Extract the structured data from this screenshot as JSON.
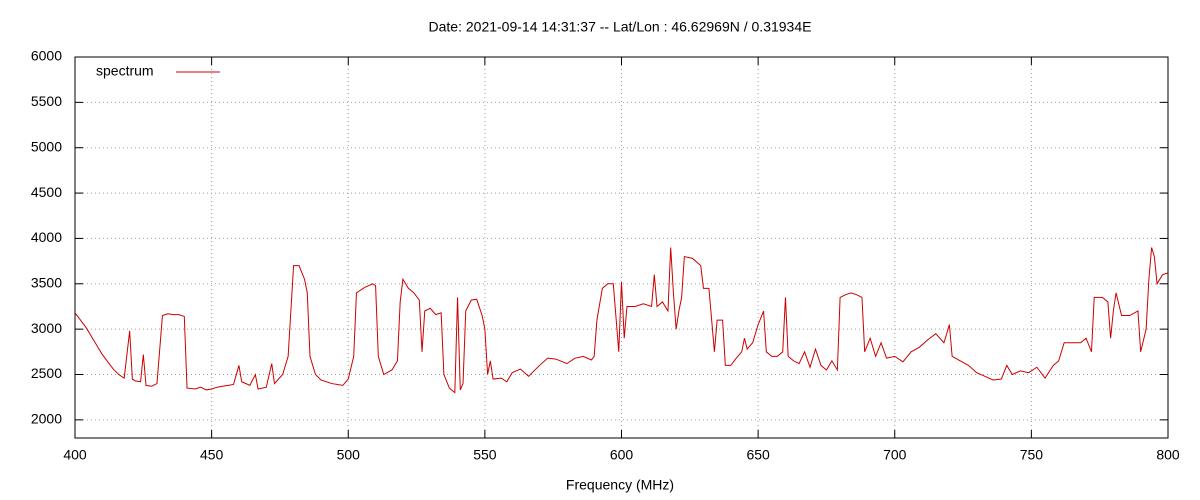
{
  "chart_data": {
    "type": "line",
    "title": "Date: 2021-09-14 14:31:37  --  Lat/Lon : 46.62969N / 0.31934E",
    "x_label": "Frequency (MHz)",
    "x": [
      400,
      402,
      404,
      406,
      408,
      410,
      412,
      414,
      416,
      418,
      420,
      421,
      422,
      424,
      425,
      426,
      428,
      430,
      432,
      434,
      436,
      438,
      440,
      441,
      444,
      446,
      448,
      450,
      452,
      454,
      456,
      458,
      460,
      461,
      464,
      466,
      467,
      470,
      472,
      473,
      476,
      478,
      480,
      482,
      484,
      485,
      486,
      488,
      490,
      494,
      498,
      500,
      502,
      503,
      506,
      509,
      510,
      511,
      513,
      516,
      518,
      519,
      520,
      522,
      524,
      526,
      527,
      528,
      530,
      532,
      534,
      535,
      537,
      539,
      540,
      541,
      542,
      543,
      545,
      547,
      549,
      550,
      551,
      552,
      553,
      556,
      558,
      560,
      563,
      566,
      570,
      573,
      576,
      580,
      583,
      586,
      589,
      590,
      591,
      593,
      595,
      597,
      599,
      600,
      601,
      602,
      605,
      608,
      611,
      612,
      613,
      615,
      617,
      618,
      619,
      620,
      621,
      622,
      623,
      626,
      629,
      630,
      632,
      633,
      634,
      635,
      637,
      638,
      640,
      642,
      644,
      645,
      646,
      648,
      650,
      652,
      653,
      655,
      657,
      659,
      660,
      661,
      663,
      665,
      667,
      669,
      671,
      673,
      675,
      677,
      679,
      680,
      682,
      684,
      686,
      688,
      689,
      691,
      693,
      695,
      697,
      700,
      703,
      706,
      709,
      712,
      715,
      718,
      720,
      721,
      724,
      727,
      730,
      733,
      736,
      739,
      741,
      743,
      746,
      749,
      752,
      755,
      758,
      760,
      762,
      765,
      768,
      770,
      772,
      773,
      776,
      778,
      779,
      780,
      781,
      783,
      786,
      789,
      790,
      792,
      793,
      794,
      795,
      796,
      798,
      800
    ],
    "series": [
      {
        "name": "spectrum",
        "color": "#cc0000",
        "values": [
          3180,
          3100,
          3020,
          2920,
          2820,
          2720,
          2640,
          2560,
          2500,
          2460,
          2980,
          2450,
          2430,
          2420,
          2720,
          2380,
          2370,
          2400,
          3150,
          3170,
          3160,
          3160,
          3140,
          2350,
          2340,
          2360,
          2330,
          2340,
          2360,
          2370,
          2380,
          2390,
          2600,
          2420,
          2380,
          2500,
          2340,
          2360,
          2620,
          2400,
          2500,
          2700,
          3700,
          3700,
          3550,
          3400,
          2700,
          2500,
          2440,
          2400,
          2380,
          2450,
          2700,
          3400,
          3460,
          3500,
          3480,
          2700,
          2500,
          2550,
          2650,
          3300,
          3550,
          3450,
          3400,
          3320,
          2750,
          3200,
          3230,
          3160,
          3180,
          2500,
          2350,
          2300,
          3350,
          2330,
          2400,
          3200,
          3320,
          3330,
          3150,
          3000,
          2500,
          2650,
          2450,
          2460,
          2420,
          2520,
          2560,
          2480,
          2600,
          2680,
          2670,
          2620,
          2680,
          2700,
          2660,
          2700,
          3100,
          3450,
          3500,
          3500,
          2750,
          3520,
          2900,
          3250,
          3250,
          3280,
          3250,
          3600,
          3250,
          3300,
          3200,
          3900,
          3400,
          3000,
          3200,
          3350,
          3800,
          3780,
          3700,
          3450,
          3450,
          3100,
          2750,
          3100,
          3100,
          2600,
          2600,
          2680,
          2750,
          2900,
          2780,
          2850,
          3050,
          3200,
          2750,
          2700,
          2700,
          2750,
          3350,
          2700,
          2650,
          2620,
          2750,
          2580,
          2780,
          2600,
          2550,
          2650,
          2550,
          3350,
          3380,
          3400,
          3380,
          3350,
          2750,
          2900,
          2700,
          2850,
          2680,
          2700,
          2640,
          2750,
          2800,
          2880,
          2950,
          2850,
          3050,
          2700,
          2650,
          2600,
          2520,
          2480,
          2440,
          2450,
          2600,
          2500,
          2540,
          2520,
          2580,
          2460,
          2600,
          2650,
          2850,
          2850,
          2850,
          2900,
          2750,
          3350,
          3350,
          3300,
          2900,
          3200,
          3400,
          3150,
          3150,
          3200,
          2750,
          3000,
          3550,
          3900,
          3800,
          3500,
          3600,
          3620
        ]
      }
    ],
    "xlim": [
      400,
      800
    ],
    "xticks": [
      400,
      450,
      500,
      550,
      600,
      650,
      700,
      750,
      800
    ],
    "ylim": [
      1800,
      6000
    ],
    "yticks": [
      2000,
      2500,
      3000,
      3500,
      4000,
      4500,
      5000,
      5500,
      6000
    ],
    "grid": true,
    "legend": "top-left"
  }
}
